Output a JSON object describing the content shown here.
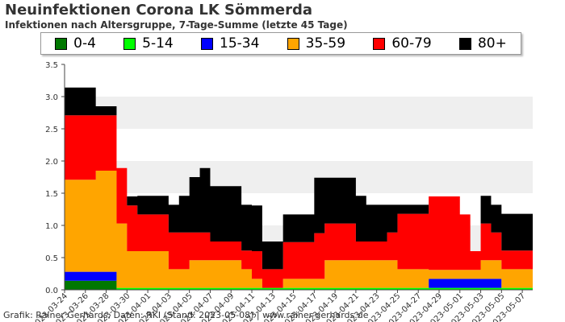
{
  "header": {
    "title": "Neuinfektionen Corona LK Sömmerda",
    "subtitle": "Infektionen nach Altersgruppe, 7-Tage-Summe (letzte 45 Tage)"
  },
  "footer": {
    "credit": "Grafik: Rainer Gerhards, Daten: RKI (Stand: 2023-05-08) | www.rainer-gerhards.de"
  },
  "chart_data": {
    "type": "area",
    "stacked": true,
    "x": [
      "2023-03-24",
      "2023-03-25",
      "2023-03-26",
      "2023-03-27",
      "2023-03-28",
      "2023-03-29",
      "2023-03-30",
      "2023-03-31",
      "2023-04-01",
      "2023-04-02",
      "2023-04-03",
      "2023-04-04",
      "2023-04-05",
      "2023-04-06",
      "2023-04-07",
      "2023-04-08",
      "2023-04-09",
      "2023-04-10",
      "2023-04-11",
      "2023-04-12",
      "2023-04-13",
      "2023-04-14",
      "2023-04-15",
      "2023-04-16",
      "2023-04-17",
      "2023-04-18",
      "2023-04-19",
      "2023-04-20",
      "2023-04-21",
      "2023-04-22",
      "2023-04-23",
      "2023-04-24",
      "2023-04-25",
      "2023-04-26",
      "2023-04-27",
      "2023-04-28",
      "2023-04-29",
      "2023-04-30",
      "2023-05-01",
      "2023-05-02",
      "2023-05-03",
      "2023-05-04",
      "2023-05-05",
      "2023-05-06",
      "2023-05-07",
      "2023-05-08"
    ],
    "xticks": [
      "2023-03-24",
      "2023-03-26",
      "2023-03-28",
      "2023-03-30",
      "2023-04-01",
      "2023-04-03",
      "2023-04-05",
      "2023-04-07",
      "2023-04-09",
      "2023-04-11",
      "2023-04-13",
      "2023-04-15",
      "2023-04-17",
      "2023-04-19",
      "2023-04-21",
      "2023-04-23",
      "2023-04-25",
      "2023-04-27",
      "2023-04-29",
      "2023-05-01",
      "2023-05-03",
      "2023-05-05",
      "2023-05-07"
    ],
    "yticks": [
      "0.0",
      "0.5",
      "1.0",
      "1.5",
      "2.0",
      "2.5",
      "3.0",
      "3.5"
    ],
    "ylim": [
      0,
      3.5
    ],
    "grid": "horizontal bands",
    "legend_position": "top",
    "series": [
      {
        "name": "0-4",
        "color": "#007800",
        "values": [
          0.14,
          0.14,
          0.14,
          0.14,
          0.14,
          0,
          0,
          0,
          0,
          0,
          0,
          0,
          0,
          0,
          0,
          0,
          0,
          0,
          0,
          0,
          0,
          0,
          0,
          0,
          0,
          0,
          0,
          0,
          0,
          0,
          0,
          0,
          0,
          0,
          0,
          0,
          0,
          0,
          0,
          0,
          0,
          0,
          0,
          0,
          0,
          0
        ]
      },
      {
        "name": "5-14",
        "color": "#00ff00",
        "values": [
          0,
          0,
          0,
          0,
          0,
          0.03,
          0.03,
          0.03,
          0.03,
          0.03,
          0.03,
          0.03,
          0.03,
          0.03,
          0.03,
          0.03,
          0.03,
          0.03,
          0.03,
          0.03,
          0.03,
          0.03,
          0.03,
          0.03,
          0.03,
          0.03,
          0.03,
          0.03,
          0.03,
          0.03,
          0.03,
          0.03,
          0.03,
          0.03,
          0.03,
          0.03,
          0.03,
          0.03,
          0.03,
          0.03,
          0.03,
          0.03,
          0.03,
          0.03,
          0.03,
          0.03
        ]
      },
      {
        "name": "15-34",
        "color": "#0000ff",
        "values": [
          0.14,
          0.14,
          0.14,
          0.14,
          0.14,
          0,
          0,
          0,
          0,
          0,
          0,
          0,
          0,
          0,
          0,
          0,
          0,
          0,
          0,
          0,
          0,
          0,
          0,
          0,
          0,
          0,
          0,
          0,
          0,
          0,
          0,
          0,
          0,
          0,
          0,
          0.14,
          0.14,
          0.14,
          0.14,
          0.14,
          0.14,
          0.14,
          0,
          0,
          0,
          0
        ]
      },
      {
        "name": "35-59",
        "color": "#ffa500",
        "values": [
          1.43,
          1.43,
          1.43,
          1.57,
          1.57,
          1.0,
          0.57,
          0.57,
          0.57,
          0.57,
          0.29,
          0.29,
          0.43,
          0.43,
          0.43,
          0.43,
          0.43,
          0.29,
          0.14,
          0,
          0,
          0.14,
          0.14,
          0.14,
          0.14,
          0.43,
          0.43,
          0.43,
          0.43,
          0.43,
          0.43,
          0.43,
          0.29,
          0.29,
          0.29,
          0.14,
          0.14,
          0.14,
          0.14,
          0.14,
          0.29,
          0.29,
          0.29,
          0.29,
          0.29,
          0.29
        ]
      },
      {
        "name": "60-79",
        "color": "#ff0000",
        "values": [
          1.0,
          1.0,
          1.0,
          0.86,
          0.86,
          0.86,
          0.71,
          0.57,
          0.57,
          0.57,
          0.57,
          0.57,
          0.43,
          0.43,
          0.29,
          0.29,
          0.29,
          0.29,
          0.43,
          0.29,
          0.29,
          0.57,
          0.57,
          0.57,
          0.71,
          0.57,
          0.57,
          0.57,
          0.29,
          0.29,
          0.29,
          0.43,
          0.86,
          0.86,
          0.86,
          1.14,
          1.14,
          1.14,
          0.86,
          0.29,
          0.57,
          0.43,
          0.29,
          0.29,
          0.29,
          0.43
        ]
      },
      {
        "name": "80+",
        "color": "#000000",
        "values": [
          0.43,
          0.43,
          0.43,
          0.14,
          0.14,
          0,
          0.14,
          0.29,
          0.29,
          0.29,
          0.43,
          0.57,
          0.86,
          1.0,
          0.86,
          0.86,
          0.86,
          0.71,
          0.71,
          0.43,
          0.43,
          0.43,
          0.43,
          0.43,
          0.86,
          0.71,
          0.71,
          0.71,
          0.71,
          0.57,
          0.57,
          0.43,
          0.14,
          0.14,
          0.14,
          0,
          0,
          0,
          0,
          0,
          0.43,
          0.43,
          0.57,
          0.57,
          0.57,
          0.86
        ]
      }
    ]
  }
}
